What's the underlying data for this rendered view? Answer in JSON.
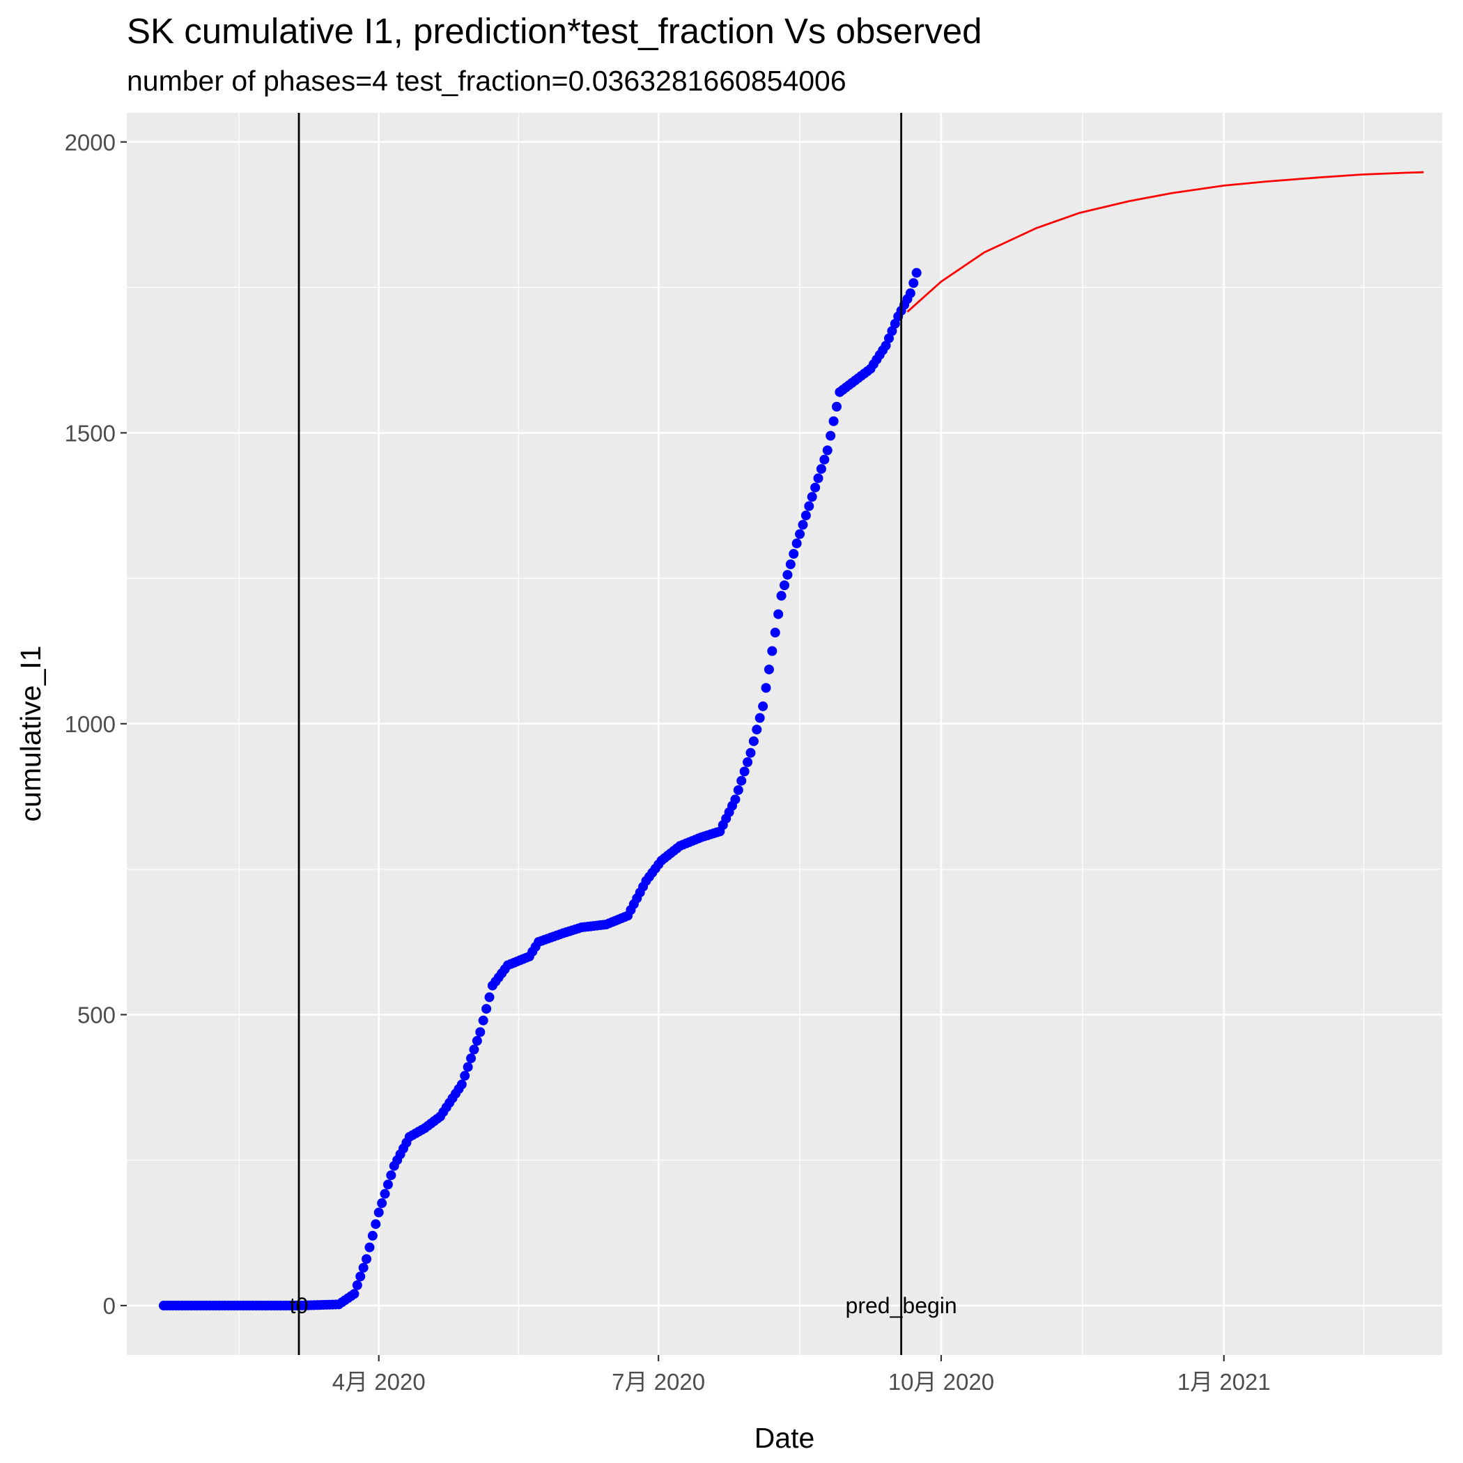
{
  "chart_data": {
    "type": "scatter",
    "title": "SK cumulative I1,  prediction*test_fraction Vs observed",
    "subtitle": "number of phases=4   test_fraction=0.0363281660854006",
    "xlabel": "Date",
    "ylabel": "cumulative_I1",
    "xlim": [
      "2020-01-10",
      "2021-03-13"
    ],
    "ylim": [
      -85,
      2050
    ],
    "x_ticks": [
      {
        "date": "2020-04-01",
        "label": "4月 2020"
      },
      {
        "date": "2020-07-01",
        "label": "7月 2020"
      },
      {
        "date": "2020-10-01",
        "label": "10月 2020"
      },
      {
        "date": "2021-01-01",
        "label": "1月 2021"
      }
    ],
    "y_ticks": [
      0,
      500,
      1000,
      1500,
      2000
    ],
    "grid": true,
    "background": "#EBEBEB",
    "vlines": [
      {
        "date": "2020-03-06",
        "label": "t0"
      },
      {
        "date": "2020-09-18",
        "label": "pred_begin"
      }
    ],
    "series": [
      {
        "kind": "points",
        "color": "#0000FF",
        "anchors": [
          [
            "2020-01-22",
            0
          ],
          [
            "2020-03-06",
            0
          ],
          [
            "2020-03-19",
            2
          ],
          [
            "2020-03-24",
            20
          ],
          [
            "2020-03-28",
            80
          ],
          [
            "2020-04-01",
            160
          ],
          [
            "2020-04-06",
            240
          ],
          [
            "2020-04-11",
            290
          ],
          [
            "2020-04-16",
            305
          ],
          [
            "2020-04-21",
            325
          ],
          [
            "2020-04-28",
            380
          ],
          [
            "2020-05-04",
            470
          ],
          [
            "2020-05-08",
            550
          ],
          [
            "2020-05-13",
            585
          ],
          [
            "2020-05-20",
            600
          ],
          [
            "2020-05-23",
            625
          ],
          [
            "2020-05-31",
            640
          ],
          [
            "2020-06-06",
            650
          ],
          [
            "2020-06-14",
            655
          ],
          [
            "2020-06-21",
            670
          ],
          [
            "2020-06-27",
            730
          ],
          [
            "2020-07-02",
            765
          ],
          [
            "2020-07-08",
            790
          ],
          [
            "2020-07-15",
            805
          ],
          [
            "2020-07-21",
            815
          ],
          [
            "2020-07-26",
            870
          ],
          [
            "2020-07-31",
            950
          ],
          [
            "2020-08-04",
            1030
          ],
          [
            "2020-08-10",
            1220
          ],
          [
            "2020-08-15",
            1310
          ],
          [
            "2020-08-20",
            1390
          ],
          [
            "2020-08-25",
            1470
          ],
          [
            "2020-08-29",
            1570
          ],
          [
            "2020-09-03",
            1590
          ],
          [
            "2020-09-08",
            1610
          ],
          [
            "2020-09-13",
            1650
          ],
          [
            "2020-09-17",
            1700
          ],
          [
            "2020-09-21",
            1740
          ],
          [
            "2020-09-23",
            1775
          ]
        ]
      },
      {
        "kind": "line",
        "color": "#FF0000",
        "anchors": [
          [
            "2020-09-20",
            1708
          ],
          [
            "2020-10-01",
            1760
          ],
          [
            "2020-10-15",
            1810
          ],
          [
            "2020-11-01",
            1852
          ],
          [
            "2020-11-15",
            1878
          ],
          [
            "2020-12-01",
            1898
          ],
          [
            "2020-12-15",
            1912
          ],
          [
            "2021-01-01",
            1925
          ],
          [
            "2021-01-15",
            1932
          ],
          [
            "2021-02-01",
            1939
          ],
          [
            "2021-02-15",
            1944
          ],
          [
            "2021-03-01",
            1947
          ],
          [
            "2021-03-07",
            1948
          ]
        ]
      }
    ]
  }
}
